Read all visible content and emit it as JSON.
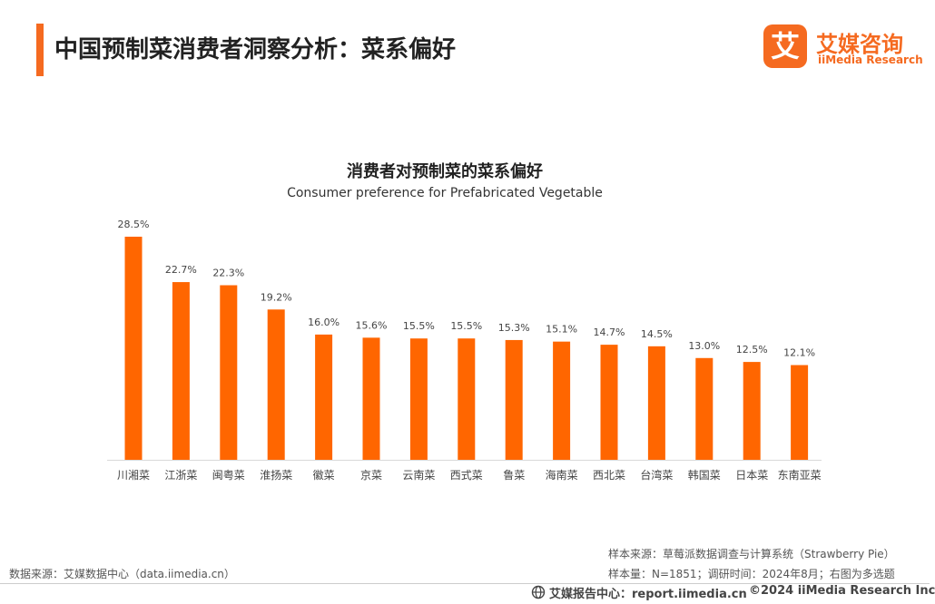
{
  "header": {
    "title": "中国预制菜消费者洞察分析：菜系偏好",
    "logo_cn": "艾媒咨询",
    "logo_en": "iiMedia Research",
    "logo_mark": "艾"
  },
  "chart_data": {
    "type": "bar",
    "title": "消费者对预制菜的菜系偏好",
    "subtitle": "Consumer preference for Prefabricated Vegetable",
    "categories": [
      "川湘菜",
      "江浙菜",
      "闽粤菜",
      "淮扬菜",
      "徽菜",
      "京菜",
      "云南菜",
      "西式菜",
      "鲁菜",
      "海南菜",
      "西北菜",
      "台湾菜",
      "韩国菜",
      "日本菜",
      "东南亚菜"
    ],
    "values": [
      28.5,
      22.7,
      22.3,
      19.2,
      16.0,
      15.6,
      15.5,
      15.5,
      15.3,
      15.1,
      14.7,
      14.5,
      13.0,
      12.5,
      12.1
    ],
    "value_labels": [
      "28.5%",
      "22.7%",
      "22.3%",
      "19.2%",
      "16.0%",
      "15.6%",
      "15.5%",
      "15.5%",
      "15.3%",
      "15.1%",
      "14.7%",
      "14.5%",
      "13.0%",
      "12.5%",
      "12.1%"
    ],
    "unit": "%",
    "ylim": [
      0,
      30
    ],
    "grid": false,
    "legend": "none",
    "bar_color": "#ff6600"
  },
  "footer": {
    "source_left": "数据来源：艾媒数据中心（data.iimedia.cn）",
    "sample_source": "样本来源：草莓派数据调查与计算系统（Strawberry Pie）",
    "sample_info": "样本量：N=1851；调研时间：2024年8月；右图为多选题",
    "report_center": "艾媒报告中心：report.iimedia.cn",
    "copyright": "©2024  iiMedia Research Inc"
  },
  "colors": {
    "accent": "#f56a20",
    "bar": "#ff6600"
  }
}
